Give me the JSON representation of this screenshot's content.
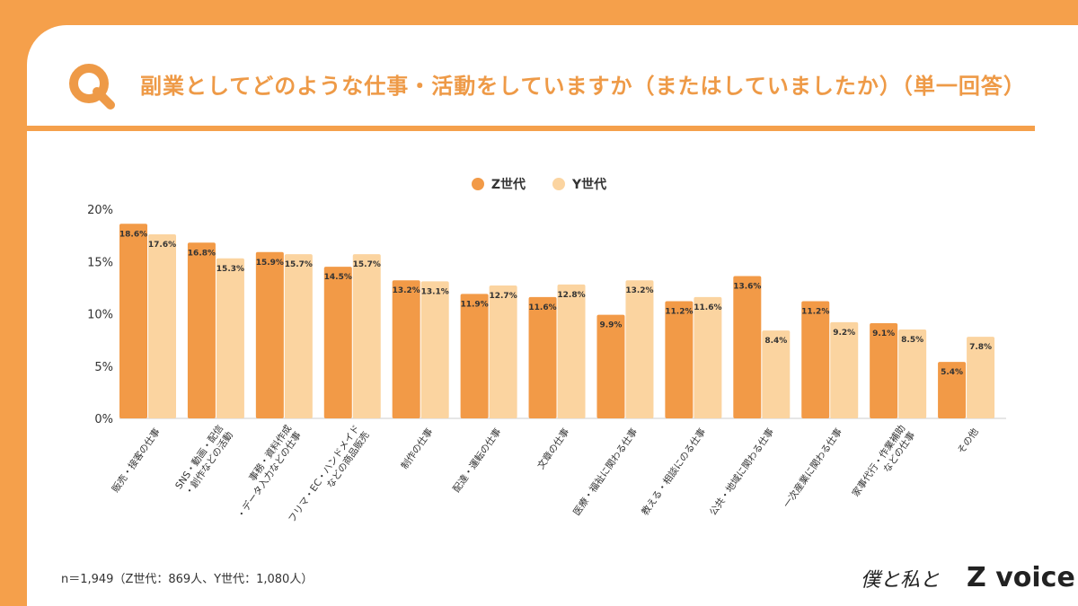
{
  "title": "副業としてどのような仕事・活動をしていますか（またはしていましたか）（単一回答）",
  "note": "n＝1,949（Z世代：869人、Y世代：1,080人）",
  "logo": {
    "script": "僕と私と",
    "brand_z": "Z",
    "brand_rest": "voice"
  },
  "colors": {
    "background": "#F5A04B",
    "title": "#EE9A47",
    "z": "#F29A47",
    "y": "#FBD4A0"
  },
  "chart_data": {
    "type": "bar",
    "categories": [
      "販売・接客の仕事",
      "SNS・動画・配信\n・創作などの活動",
      "事務・資料作成\n・データ入力などの仕事",
      "フリマ・EC・ハンドメイド\nなどの商品販売",
      "制作の仕事",
      "配達・運転の仕事",
      "文章の仕事",
      "医療・福祉に関わる仕事",
      "教える・相談にのる仕事",
      "公共・地域に関わる仕事",
      "一次産業に関わる仕事",
      "家事代行・作業補助\nなどの仕事",
      "その他"
    ],
    "series": [
      {
        "name": "Z世代",
        "color": "#F29A47",
        "values": [
          18.6,
          16.8,
          15.9,
          14.5,
          13.2,
          11.9,
          11.6,
          9.9,
          11.2,
          13.6,
          11.2,
          9.1,
          5.4
        ]
      },
      {
        "name": "Y世代",
        "color": "#FBD4A0",
        "values": [
          17.6,
          15.3,
          15.7,
          15.7,
          13.1,
          12.7,
          12.8,
          13.2,
          11.6,
          8.4,
          9.2,
          8.5,
          7.8
        ]
      }
    ],
    "yticks": [
      "0%",
      "5%",
      "10%",
      "15%",
      "20%"
    ],
    "ylim": [
      0,
      20
    ],
    "legend": "top-center",
    "grid": false
  }
}
